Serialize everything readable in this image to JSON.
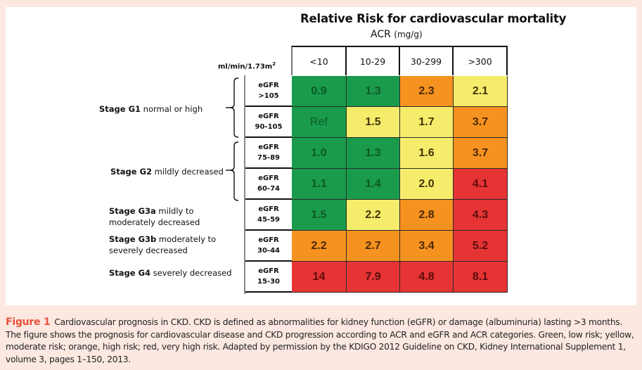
{
  "figure": {
    "title": "Relative Risk  for cardiovascular mortality",
    "subtitle": "ACR",
    "subtitle_unit": "(mg/g)",
    "row_unit_label": "ml/min/1.73m",
    "row_unit_sup": "2"
  },
  "chart_data": {
    "type": "heatmap",
    "title": "Relative Risk  for cardiovascular mortality",
    "xlabel": "ACR (mg/g)",
    "ylabel": "ml/min/1.73m2",
    "columns": [
      "<10",
      "10-29",
      "30-299",
      ">300"
    ],
    "rows": [
      {
        "stage": "G1",
        "label_top": "eGFR",
        "label_bottom": ">105",
        "values": [
          "0.9",
          "1.3",
          "2.3",
          "2.1"
        ],
        "risk": [
          "green",
          "green",
          "orange",
          "yellow"
        ]
      },
      {
        "stage": "G1",
        "label_top": "eGFR",
        "label_bottom": "90-105",
        "values": [
          "Ref",
          "1.5",
          "1.7",
          "3.7"
        ],
        "risk": [
          "green",
          "yellow",
          "yellow",
          "orange"
        ]
      },
      {
        "stage": "G2",
        "label_top": "eGFR",
        "label_bottom": "75-89",
        "values": [
          "1.0",
          "1.3",
          "1.6",
          "3.7"
        ],
        "risk": [
          "green",
          "green",
          "yellow",
          "orange"
        ]
      },
      {
        "stage": "G2",
        "label_top": "eGFR",
        "label_bottom": "60-74",
        "values": [
          "1.1",
          "1.4",
          "2.0",
          "4.1"
        ],
        "risk": [
          "green",
          "green",
          "yellow",
          "red"
        ]
      },
      {
        "stage": "G3a",
        "label_top": "eGFR",
        "label_bottom": "45-59",
        "values": [
          "1.5",
          "2.2",
          "2.8",
          "4.3"
        ],
        "risk": [
          "green",
          "yellow",
          "orange",
          "red"
        ]
      },
      {
        "stage": "G3b",
        "label_top": "eGFR",
        "label_bottom": "30-44",
        "values": [
          "2.2",
          "2.7",
          "3.4",
          "5.2"
        ],
        "risk": [
          "orange",
          "orange",
          "orange",
          "red"
        ]
      },
      {
        "stage": "G4",
        "label_top": "eGFR",
        "label_bottom": "15-30",
        "values": [
          "14",
          "7.9",
          "4.8",
          "8.1"
        ],
        "risk": [
          "red",
          "red",
          "red",
          "red"
        ]
      }
    ],
    "legend": {
      "green": "low risk",
      "yellow": "moderate risk",
      "orange": "high risk",
      "red": "very high risk"
    },
    "colors": {
      "green": "#1a9b4b",
      "yellow": "#f6ec6c",
      "orange": "#f6921f",
      "red": "#e63434"
    }
  },
  "stages": [
    {
      "bold": "Stage  G1",
      "text": " normal  or high"
    },
    {
      "bold": "Stage  G2",
      "text": "   mildly decreased"
    },
    {
      "bold": "Stage  G3a",
      "text": "  mildly to",
      "line2": "moderately decreased"
    },
    {
      "bold": "Stage  G3b",
      "text": "  moderately to",
      "line2": "severely decreased"
    },
    {
      "bold": "Stage  G4",
      "text": "  severely decreased"
    }
  ],
  "caption": {
    "label": "Figure 1",
    "text": "Cardiovascular prognosis in CKD. CKD is defined as abnormalities for kidney function (eGFR) or damage (albuminuria) lasting >3 months. The figure shows the prognosis for cardiovascular disease and CKD progression according to ACR and eGFR and ACR categories. Green, low risk; yellow, moderate risk; orange, high risk; red, very high risk. Adapted by permission by the KDIGO 2012 Guideline on CKD, Kidney International Supplement 1, volume 3, pages 1–150, 2013."
  }
}
